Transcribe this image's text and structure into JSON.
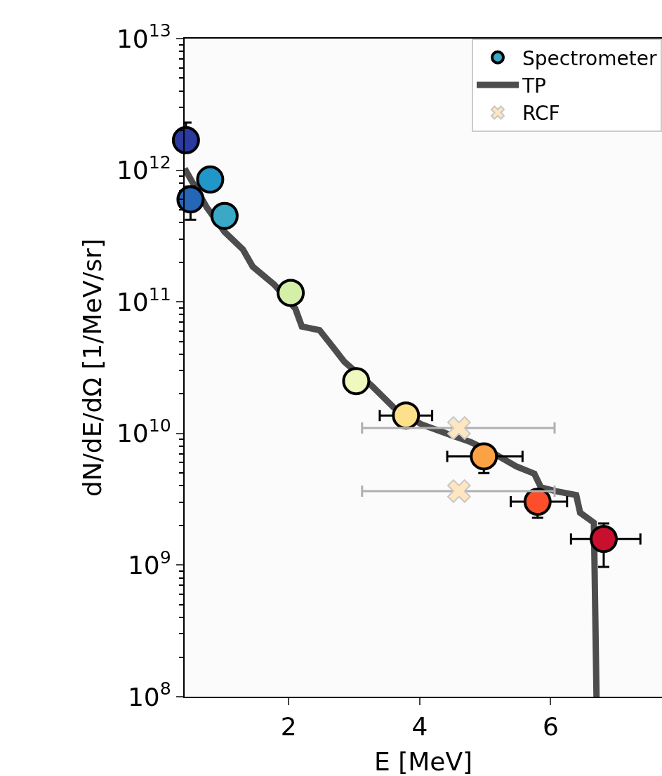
{
  "chart_data": {
    "type": "scatter",
    "xlabel": "E [MeV]",
    "ylabel": "dN/dE/dΩ [1/MeV/sr]",
    "log": "y",
    "grid": false,
    "legend": "top right",
    "xlim": [
      0.41,
      7.7
    ],
    "xticks": [
      2,
      4,
      6
    ],
    "ylim": [
      100000000.0,
      10000000000000.0
    ],
    "yticks": [
      {
        "value": 100000000.0,
        "label": "10$^{8}$"
      },
      {
        "value": 1000000000.0,
        "label": "10$^{9}$"
      },
      {
        "value": 10000000000.0,
        "label": "10$^{10}$"
      },
      {
        "value": 100000000000.0,
        "label": "10$^{11}$"
      },
      {
        "value": 1000000000000.0,
        "label": "10$^{12}$"
      },
      {
        "value": 10000000000000.0,
        "label": "10$^{13}$"
      }
    ],
    "series": [
      {
        "name": "Spectrometer",
        "marker": "circle",
        "color": "#39a9c6",
        "x": [
          0.43,
          0.5,
          0.8,
          1.02,
          2.03,
          3.03,
          3.79,
          4.98,
          5.8,
          6.81
        ],
        "values": [
          1690000000000.0,
          600000000000.0,
          850000000000.0,
          450000000000.0,
          117000000000.0,
          25000000000.0,
          13700000000.0,
          6700000000.0,
          3030000000.0,
          1580000000.0
        ],
        "colors": [
          "#2b3a9e",
          "#2566b8",
          "#2196c8",
          "#39a9c6",
          "#d4f0a8",
          "#eff8bf",
          "#fde08a",
          "#fca245",
          "#fc4e2a",
          "#c8102e"
        ],
        "errors": [
          [
            1400000000000.0,
            2300000000000.0
          ],
          [
            420000000000.0,
            750000000000.0
          ],
          null,
          null,
          null,
          null,
          null,
          [
            5000000000.0,
            6700000000.0
          ],
          [
            2290000000.0,
            3030000000.0
          ],
          [
            970000000.0,
            2070000000.0
          ]
        ],
        "xerrors": [
          null,
          null,
          null,
          null,
          null,
          null,
          [
            3.39,
            4.19
          ],
          [
            4.42,
            5.57
          ],
          [
            5.39,
            6.25
          ],
          [
            6.31,
            7.37
          ]
        ]
      },
      {
        "name": "TP",
        "type": "line",
        "marker": "none",
        "line_style": "solid",
        "color": "#4d4d4d",
        "x": [
          0.41,
          0.75,
          1.02,
          1.3,
          1.45,
          1.78,
          2.1,
          2.2,
          2.47,
          2.68,
          2.85,
          3.27,
          3.6,
          4.03,
          4.46,
          4.78,
          5.1,
          5.48,
          5.75,
          5.85,
          6.07,
          6.39,
          6.45,
          6.66,
          6.7
        ],
        "values": [
          1030000000000.0,
          520000000000.0,
          340000000000.0,
          250000000000.0,
          185000000000.0,
          135000000000.0,
          89000000000.0,
          65000000000.0,
          61000000000.0,
          45000000000.0,
          35000000000.0,
          23000000000.0,
          15800000000.0,
          11700000000.0,
          9800000000.0,
          8600000000.0,
          7200000000.0,
          5600000000.0,
          4950000000.0,
          3900000000.0,
          3650000000.0,
          3400000000.0,
          2500000000.0,
          2100000000.0,
          100000000.0
        ]
      },
      {
        "name": "RCF",
        "marker": "cross",
        "color": "#fde6c0",
        "x": [
          4.6,
          4.6
        ],
        "values": [
          11000000000.0,
          3650000000.0
        ],
        "xerrors": [
          [
            3.12,
            6.06
          ],
          [
            3.12,
            6.06
          ]
        ]
      }
    ]
  }
}
